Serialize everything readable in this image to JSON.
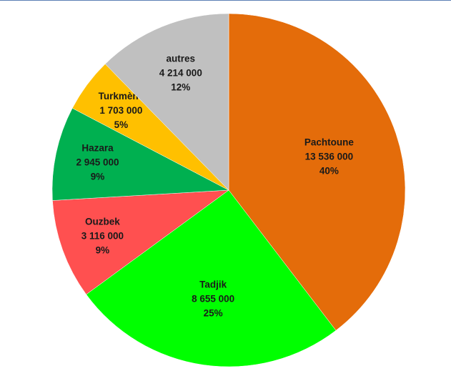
{
  "chart_data": {
    "type": "pie",
    "slices": [
      {
        "label": "Pachtoune",
        "value_text": "13 536 000",
        "value": 13536000,
        "percent_text": "40%",
        "color": "#e46c0a"
      },
      {
        "label": "Tadjik",
        "value_text": "8 655 000",
        "value": 8655000,
        "percent_text": "25%",
        "color": "#00ff00"
      },
      {
        "label": "Ouzbek",
        "value_text": "3 116 000",
        "value": 3116000,
        "percent_text": "9%",
        "color": "#ff5050"
      },
      {
        "label": "Hazara",
        "value_text": "2 945 000",
        "value": 2945000,
        "percent_text": "9%",
        "color": "#00b050"
      },
      {
        "label": "Turkmène",
        "value_text": "1 703 000",
        "value": 1703000,
        "percent_text": "5%",
        "color": "#ffc000"
      },
      {
        "label": "autres",
        "value_text": "4 214 000",
        "value": 4214000,
        "percent_text": "12%",
        "color": "#c0c0c0"
      }
    ],
    "start_angle": "12 o'clock",
    "direction": "clockwise",
    "legend": "none"
  }
}
